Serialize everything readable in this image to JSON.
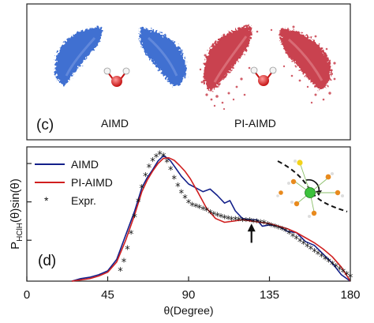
{
  "top_panel": {
    "panel_label": "(c)",
    "left_caption": "AIMD",
    "right_caption": "PI-AIMD",
    "colors": {
      "aimd_cloud": "#3f6fd1",
      "piaimd_cloud": "#c9424f",
      "oxygen": "#d91f1f",
      "hydrogen": "#f3f3f3"
    }
  },
  "chart_data": {
    "type": "line",
    "panel_label": "(d)",
    "title": "",
    "xlabel": "θ(Degree)",
    "ylabel": "P",
    "ylabel_subscript": "HClH",
    "ylabel_suffix": "(θ)sin(θ)",
    "xlim": [
      0,
      180
    ],
    "ylim": [
      0,
      1.05
    ],
    "xticks": [
      0,
      45,
      90,
      135,
      180
    ],
    "xtick_labels": [
      "0",
      "45",
      "90",
      "135",
      "180"
    ],
    "yticks": [
      0.32,
      0.62,
      0.92
    ],
    "legend": {
      "position": "top-left",
      "entries": [
        "AIMD",
        "PI-AIMD",
        "Expr."
      ]
    },
    "annotation": {
      "type": "arrow",
      "x": 125,
      "y_tip": 0.45,
      "y_tail": 0.3
    },
    "series": [
      {
        "name": "AIMD",
        "color": "#13208a",
        "style": "solid",
        "x": [
          25,
          30,
          35,
          40,
          45,
          50,
          55,
          60,
          64,
          67,
          70,
          73,
          76,
          78,
          80,
          83,
          86,
          90,
          94,
          98,
          102,
          106,
          110,
          113,
          116,
          120,
          124,
          128,
          131,
          135,
          140,
          145,
          150,
          155,
          160,
          165,
          170,
          175,
          180
        ],
        "y": [
          0.0,
          0.02,
          0.03,
          0.05,
          0.08,
          0.17,
          0.36,
          0.55,
          0.73,
          0.81,
          0.87,
          0.94,
          0.98,
          0.965,
          0.94,
          0.88,
          0.82,
          0.76,
          0.73,
          0.7,
          0.72,
          0.67,
          0.61,
          0.63,
          0.55,
          0.49,
          0.48,
          0.48,
          0.43,
          0.44,
          0.43,
          0.39,
          0.38,
          0.31,
          0.28,
          0.21,
          0.14,
          0.05,
          0.0
        ]
      },
      {
        "name": "PI-AIMD",
        "color": "#d01f1f",
        "style": "solid",
        "x": [
          25,
          30,
          35,
          40,
          45,
          50,
          55,
          60,
          64,
          67,
          70,
          73,
          76,
          79,
          82,
          85,
          88,
          91,
          95,
          100,
          105,
          110,
          115,
          120,
          125,
          130,
          135,
          140,
          145,
          150,
          155,
          160,
          165,
          170,
          175,
          180
        ],
        "y": [
          0.0,
          0.01,
          0.02,
          0.04,
          0.07,
          0.15,
          0.32,
          0.52,
          0.7,
          0.79,
          0.86,
          0.92,
          0.96,
          0.965,
          0.945,
          0.905,
          0.86,
          0.8,
          0.7,
          0.57,
          0.49,
          0.46,
          0.47,
          0.48,
          0.47,
          0.46,
          0.45,
          0.43,
          0.41,
          0.38,
          0.34,
          0.3,
          0.25,
          0.19,
          0.11,
          0.0
        ]
      },
      {
        "name": "Expr.",
        "color": "#111111",
        "style": "star",
        "x": [
          52,
          54,
          56,
          58,
          60,
          62,
          64,
          66,
          68,
          70,
          72,
          74,
          76,
          78,
          80,
          82,
          84,
          86,
          88,
          90,
          92,
          94,
          96,
          98,
          100,
          102,
          104,
          106,
          108,
          110,
          112,
          114,
          116,
          118,
          120,
          122,
          124,
          126,
          128,
          130,
          132,
          134,
          136,
          138,
          140,
          142,
          144,
          146,
          148,
          150,
          152,
          154,
          156,
          158,
          160,
          162,
          164,
          166,
          168,
          170,
          172,
          174,
          176,
          178,
          180
        ],
        "y": [
          0.08,
          0.15,
          0.25,
          0.37,
          0.5,
          0.62,
          0.73,
          0.82,
          0.89,
          0.94,
          0.97,
          0.99,
          0.975,
          0.93,
          0.87,
          0.8,
          0.74,
          0.69,
          0.65,
          0.61,
          0.59,
          0.58,
          0.57,
          0.56,
          0.55,
          0.53,
          0.52,
          0.51,
          0.5,
          0.49,
          0.485,
          0.48,
          0.48,
          0.475,
          0.47,
          0.47,
          0.47,
          0.46,
          0.46,
          0.455,
          0.45,
          0.44,
          0.43,
          0.42,
          0.41,
          0.4,
          0.39,
          0.37,
          0.35,
          0.33,
          0.31,
          0.29,
          0.27,
          0.25,
          0.23,
          0.21,
          0.19,
          0.17,
          0.15,
          0.13,
          0.11,
          0.09,
          0.07,
          0.05,
          0.03
        ]
      }
    ]
  }
}
